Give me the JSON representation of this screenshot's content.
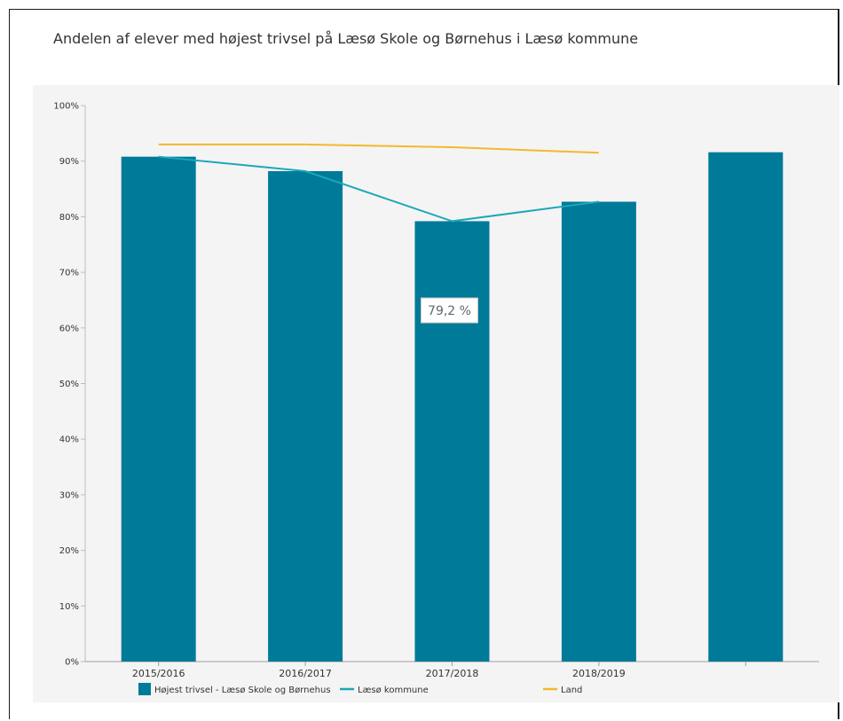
{
  "chart_data": {
    "type": "bar",
    "title": "Andelen af elever med højest trivsel på Læsø Skole og Børnehus i Læsø kommune",
    "categories": [
      "2015/2016",
      "2016/2017",
      "2017/2018",
      "2018/2019",
      ""
    ],
    "ylim": [
      0,
      100
    ],
    "yticks": [
      {
        "value": 0,
        "label": "0%"
      },
      {
        "value": 10,
        "label": "10%"
      },
      {
        "value": 20,
        "label": "20%"
      },
      {
        "value": 30,
        "label": "30%"
      },
      {
        "value": 40,
        "label": "40%"
      },
      {
        "value": 50,
        "label": "50%"
      },
      {
        "value": 60,
        "label": "60%"
      },
      {
        "value": 70,
        "label": "70%"
      },
      {
        "value": 80,
        "label": "80%"
      },
      {
        "value": 90,
        "label": "90%"
      },
      {
        "value": 100,
        "label": "100%"
      }
    ],
    "series": [
      {
        "name": "Højest trivsel - Læsø Skole og Børnehus",
        "kind": "bar",
        "color": "#007A99",
        "values": [
          90.8,
          88.2,
          79.2,
          82.7,
          91.6
        ]
      },
      {
        "name": "Læsø kommune",
        "kind": "line",
        "color": "#1AA8B8",
        "values": [
          90.8,
          88.2,
          79.2,
          82.7,
          null
        ]
      },
      {
        "name": "Land",
        "kind": "line",
        "color": "#F5B82E",
        "values": [
          93.0,
          93.0,
          92.5,
          91.5,
          null
        ]
      }
    ],
    "tooltip": {
      "category_index": 2,
      "label": "79,2 %"
    },
    "grid": false,
    "legend_position": "bottom"
  }
}
